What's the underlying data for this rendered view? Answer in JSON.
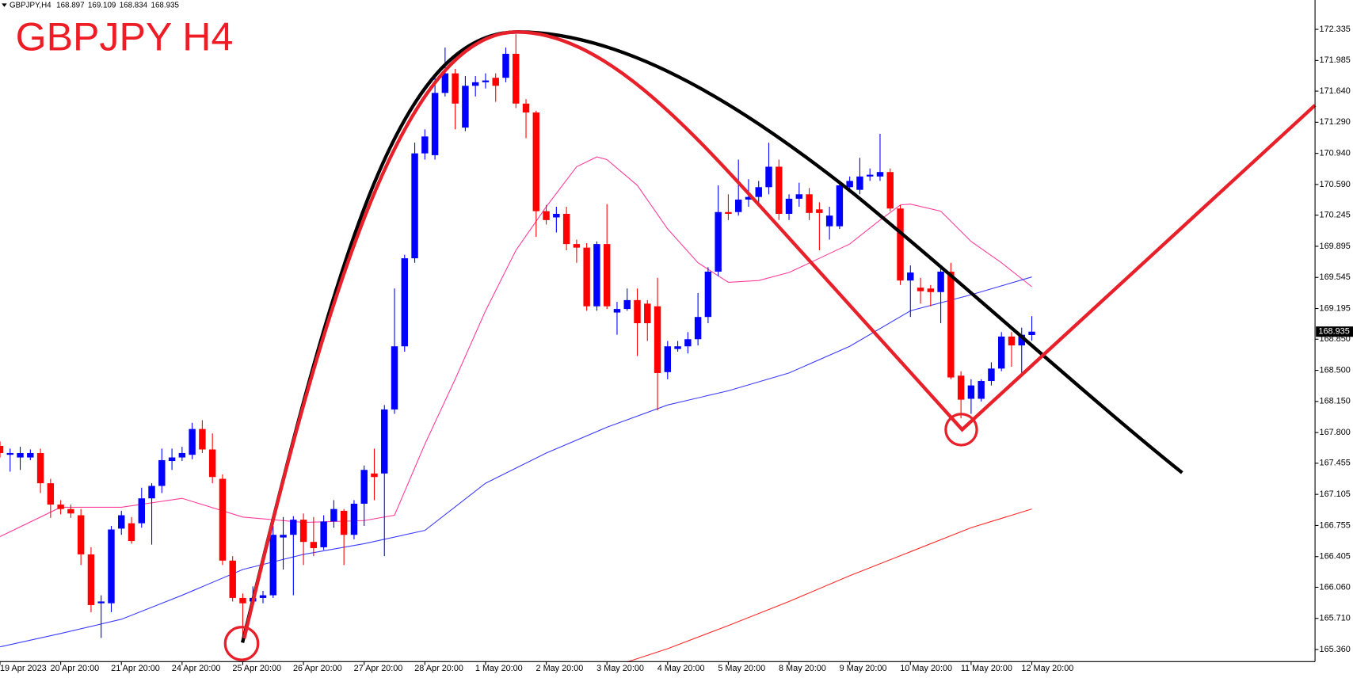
{
  "chart_data": {
    "type": "candlestick",
    "symbol": "GBPJPY,H4",
    "title": "GBPJPY H4",
    "up_color": "#0000ff",
    "down_color": "#ff0000",
    "xlim": [
      0,
      130
    ],
    "ylim": [
      165.224,
      172.665
    ],
    "yticks": [
      172.335,
      171.985,
      {
        "value": 171.64,
        "label": "171.640"
      },
      {
        "value": 171.29,
        "label": "171.290"
      },
      {
        "value": 170.94,
        "label": "170.940"
      },
      {
        "value": 170.59,
        "label": "170.590"
      },
      170.245,
      169.895,
      169.545,
      169.195,
      {
        "value": 168.85,
        "label": "168.850"
      },
      {
        "value": 168.5,
        "label": "168.500"
      },
      {
        "value": 168.15,
        "label": "168.150"
      },
      {
        "value": 167.8,
        "label": "167.800"
      },
      167.455,
      167.105,
      166.755,
      166.405,
      {
        "value": 166.06,
        "label": "166.060"
      },
      {
        "value": 165.71,
        "label": "165.710"
      },
      {
        "value": 165.36,
        "label": "165.360"
      }
    ],
    "xticks": [
      {
        "value": 0,
        "label": "19 Apr 2023"
      },
      {
        "value": 6,
        "label": "20 Apr 20:00"
      },
      {
        "value": 12,
        "label": "21 Apr 20:00"
      },
      {
        "value": 18,
        "label": "24 Apr 20:00"
      },
      {
        "value": 24,
        "label": "25 Apr 20:00"
      },
      {
        "value": 30,
        "label": "26 Apr 20:00"
      },
      {
        "value": 36,
        "label": "27 Apr 20:00"
      },
      {
        "value": 42,
        "label": "28 Apr 20:00"
      },
      {
        "value": 48,
        "label": "1 May 20:00"
      },
      {
        "value": 54,
        "label": "2 May 20:00"
      },
      {
        "value": 60,
        "label": "3 May 20:00"
      },
      {
        "value": 66,
        "label": "4 May 20:00"
      },
      {
        "value": 72,
        "label": "5 May 20:00"
      },
      {
        "value": 78,
        "label": "8 May 20:00"
      },
      {
        "value": 84,
        "label": "9 May 20:00"
      },
      {
        "value": 90,
        "label": "10 May 20:00"
      },
      {
        "value": 96,
        "label": "11 May 20:00"
      },
      {
        "value": 102,
        "label": "12 May 20:00"
      }
    ],
    "candles": [
      {
        "open": 167.65,
        "high": 167.7,
        "low": 167.52,
        "close": 167.57
      },
      {
        "open": 167.55,
        "high": 167.62,
        "low": 167.36,
        "close": 167.57
      },
      {
        "open": 167.52,
        "high": 167.64,
        "low": 167.38,
        "close": 167.57
      },
      {
        "open": 167.52,
        "high": 167.61,
        "low": 167.49,
        "close": 167.57
      },
      {
        "open": 167.57,
        "high": 167.62,
        "low": 167.12,
        "close": 167.23
      },
      {
        "open": 167.23,
        "high": 167.28,
        "low": 166.84,
        "close": 166.99
      },
      {
        "open": 166.99,
        "high": 167.04,
        "low": 166.88,
        "close": 166.94
      },
      {
        "open": 166.94,
        "high": 166.99,
        "low": 166.84,
        "close": 166.89
      },
      {
        "open": 166.87,
        "high": 166.94,
        "low": 166.31,
        "close": 166.43
      },
      {
        "open": 166.43,
        "high": 166.51,
        "low": 165.78,
        "close": 165.86
      },
      {
        "open": 165.88,
        "high": 165.97,
        "low": 165.49,
        "close": 165.9
      },
      {
        "open": 165.88,
        "high": 166.75,
        "low": 165.78,
        "close": 166.71
      },
      {
        "open": 166.72,
        "high": 166.92,
        "low": 166.65,
        "close": 166.87
      },
      {
        "open": 166.78,
        "high": 166.85,
        "low": 166.55,
        "close": 166.58
      },
      {
        "open": 166.78,
        "high": 167.18,
        "low": 166.73,
        "close": 167.06
      },
      {
        "open": 167.06,
        "high": 167.23,
        "low": 166.54,
        "close": 167.2
      },
      {
        "open": 167.2,
        "high": 167.62,
        "low": 167.12,
        "close": 167.49
      },
      {
        "open": 167.48,
        "high": 167.62,
        "low": 167.38,
        "close": 167.52
      },
      {
        "open": 167.52,
        "high": 167.64,
        "low": 167.48,
        "close": 167.57
      },
      {
        "open": 167.55,
        "high": 167.91,
        "low": 167.5,
        "close": 167.84
      },
      {
        "open": 167.84,
        "high": 167.94,
        "low": 167.57,
        "close": 167.61
      },
      {
        "open": 167.61,
        "high": 167.79,
        "low": 167.23,
        "close": 167.3
      },
      {
        "open": 167.28,
        "high": 167.33,
        "low": 166.31,
        "close": 166.36
      },
      {
        "open": 166.36,
        "high": 166.41,
        "low": 165.9,
        "close": 165.94
      },
      {
        "open": 165.94,
        "high": 165.99,
        "low": 165.49,
        "close": 165.88
      },
      {
        "open": 165.9,
        "high": 166.07,
        "low": 165.83,
        "close": 165.94
      },
      {
        "open": 165.94,
        "high": 166.02,
        "low": 165.88,
        "close": 165.97
      },
      {
        "open": 165.97,
        "high": 166.75,
        "low": 165.94,
        "close": 166.65
      },
      {
        "open": 166.62,
        "high": 166.85,
        "low": 166.26,
        "close": 166.65
      },
      {
        "open": 166.65,
        "high": 166.86,
        "low": 165.97,
        "close": 166.82
      },
      {
        "open": 166.82,
        "high": 166.89,
        "low": 166.31,
        "close": 166.57
      },
      {
        "open": 166.57,
        "high": 166.85,
        "low": 166.41,
        "close": 166.5
      },
      {
        "open": 166.51,
        "high": 166.87,
        "low": 166.48,
        "close": 166.8
      },
      {
        "open": 166.8,
        "high": 167.04,
        "low": 166.73,
        "close": 166.94
      },
      {
        "open": 166.92,
        "high": 166.94,
        "low": 166.31,
        "close": 166.65
      },
      {
        "open": 166.65,
        "high": 167.04,
        "low": 166.6,
        "close": 167.0
      },
      {
        "open": 167.0,
        "high": 167.43,
        "low": 166.75,
        "close": 167.38
      },
      {
        "open": 167.34,
        "high": 167.62,
        "low": 167.04,
        "close": 167.3
      },
      {
        "open": 167.34,
        "high": 168.11,
        "low": 166.41,
        "close": 168.06
      },
      {
        "open": 168.06,
        "high": 169.42,
        "low": 168.01,
        "close": 168.77
      },
      {
        "open": 168.77,
        "high": 169.8,
        "low": 168.71,
        "close": 169.76
      },
      {
        "open": 169.76,
        "high": 171.06,
        "low": 169.71,
        "close": 170.94
      },
      {
        "open": 170.94,
        "high": 171.21,
        "low": 170.87,
        "close": 171.13
      },
      {
        "open": 170.92,
        "high": 171.79,
        "low": 170.87,
        "close": 171.62
      },
      {
        "open": 171.62,
        "high": 172.13,
        "low": 171.58,
        "close": 171.84
      },
      {
        "open": 171.84,
        "high": 171.89,
        "low": 171.21,
        "close": 171.5
      },
      {
        "open": 171.23,
        "high": 171.81,
        "low": 171.19,
        "close": 171.7
      },
      {
        "open": 171.7,
        "high": 171.81,
        "low": 171.58,
        "close": 171.74
      },
      {
        "open": 171.74,
        "high": 171.84,
        "low": 171.67,
        "close": 171.76
      },
      {
        "open": 171.79,
        "high": 171.84,
        "low": 171.52,
        "close": 171.7
      },
      {
        "open": 171.79,
        "high": 172.13,
        "low": 171.74,
        "close": 172.06
      },
      {
        "open": 172.06,
        "high": 172.28,
        "low": 171.45,
        "close": 171.5
      },
      {
        "open": 171.5,
        "high": 171.55,
        "low": 171.11,
        "close": 171.4
      },
      {
        "open": 171.4,
        "high": 171.42,
        "low": 170.0,
        "close": 170.29
      },
      {
        "open": 170.29,
        "high": 170.36,
        "low": 170.14,
        "close": 170.19
      },
      {
        "open": 170.22,
        "high": 170.34,
        "low": 170.05,
        "close": 170.26
      },
      {
        "open": 170.26,
        "high": 170.34,
        "low": 169.85,
        "close": 169.92
      },
      {
        "open": 169.92,
        "high": 169.97,
        "low": 169.71,
        "close": 169.88
      },
      {
        "open": 169.88,
        "high": 169.93,
        "low": 169.17,
        "close": 169.22
      },
      {
        "open": 169.22,
        "high": 169.95,
        "low": 169.17,
        "close": 169.92
      },
      {
        "open": 169.92,
        "high": 170.37,
        "low": 169.19,
        "close": 169.22
      },
      {
        "open": 169.15,
        "high": 169.27,
        "low": 168.9,
        "close": 169.19
      },
      {
        "open": 169.19,
        "high": 169.42,
        "low": 169.17,
        "close": 169.29
      },
      {
        "open": 169.29,
        "high": 169.42,
        "low": 168.66,
        "close": 169.03
      },
      {
        "open": 169.25,
        "high": 169.29,
        "low": 168.83,
        "close": 169.03
      },
      {
        "open": 169.22,
        "high": 169.54,
        "low": 168.05,
        "close": 168.47
      },
      {
        "open": 168.48,
        "high": 168.83,
        "low": 168.4,
        "close": 168.77
      },
      {
        "open": 168.74,
        "high": 168.83,
        "low": 168.71,
        "close": 168.77
      },
      {
        "open": 168.77,
        "high": 168.93,
        "low": 168.69,
        "close": 168.85
      },
      {
        "open": 168.85,
        "high": 169.37,
        "low": 168.78,
        "close": 169.1
      },
      {
        "open": 169.1,
        "high": 169.66,
        "low": 169.03,
        "close": 169.61
      },
      {
        "open": 169.61,
        "high": 170.58,
        "low": 169.56,
        "close": 170.28
      },
      {
        "open": 170.28,
        "high": 170.48,
        "low": 170.19,
        "close": 170.26
      },
      {
        "open": 170.28,
        "high": 170.87,
        "low": 170.24,
        "close": 170.42
      },
      {
        "open": 170.42,
        "high": 170.65,
        "low": 170.34,
        "close": 170.45
      },
      {
        "open": 170.45,
        "high": 170.63,
        "low": 170.34,
        "close": 170.56
      },
      {
        "open": 170.56,
        "high": 171.06,
        "low": 170.48,
        "close": 170.79
      },
      {
        "open": 170.79,
        "high": 170.87,
        "low": 170.19,
        "close": 170.26
      },
      {
        "open": 170.26,
        "high": 170.48,
        "low": 170.19,
        "close": 170.43
      },
      {
        "open": 170.43,
        "high": 170.61,
        "low": 170.34,
        "close": 170.48
      },
      {
        "open": 170.48,
        "high": 170.55,
        "low": 170.19,
        "close": 170.27
      },
      {
        "open": 170.31,
        "high": 170.39,
        "low": 169.85,
        "close": 170.27
      },
      {
        "open": 170.12,
        "high": 170.34,
        "low": 169.97,
        "close": 170.24
      },
      {
        "open": 170.12,
        "high": 170.63,
        "low": 170.09,
        "close": 170.58
      },
      {
        "open": 170.56,
        "high": 170.68,
        "low": 170.53,
        "close": 170.63
      },
      {
        "open": 170.53,
        "high": 170.89,
        "low": 170.48,
        "close": 170.68
      },
      {
        "open": 170.68,
        "high": 170.77,
        "low": 170.63,
        "close": 170.7
      },
      {
        "open": 170.68,
        "high": 171.16,
        "low": 170.63,
        "close": 170.73
      },
      {
        "open": 170.73,
        "high": 170.77,
        "low": 170.29,
        "close": 170.32
      },
      {
        "open": 170.32,
        "high": 170.36,
        "low": 169.46,
        "close": 169.51
      },
      {
        "open": 169.51,
        "high": 169.68,
        "low": 169.1,
        "close": 169.6
      },
      {
        "open": 169.43,
        "high": 169.54,
        "low": 169.25,
        "close": 169.39
      },
      {
        "open": 169.42,
        "high": 169.46,
        "low": 169.22,
        "close": 169.38
      },
      {
        "open": 169.38,
        "high": 169.66,
        "low": 169.03,
        "close": 169.61
      },
      {
        "open": 169.61,
        "high": 169.71,
        "low": 168.4,
        "close": 168.42
      },
      {
        "open": 168.44,
        "high": 168.49,
        "low": 167.96,
        "close": 168.17
      },
      {
        "open": 168.18,
        "high": 168.4,
        "low": 168.01,
        "close": 168.33
      },
      {
        "open": 168.18,
        "high": 168.4,
        "low": 168.15,
        "close": 168.38
      },
      {
        "open": 168.38,
        "high": 168.59,
        "low": 168.33,
        "close": 168.52
      },
      {
        "open": 168.52,
        "high": 168.93,
        "low": 168.49,
        "close": 168.88
      },
      {
        "open": 168.88,
        "high": 168.93,
        "low": 168.54,
        "close": 168.78
      },
      {
        "open": 168.78,
        "high": 168.98,
        "low": 168.47,
        "close": 168.9
      },
      {
        "open": 168.897,
        "high": 169.109,
        "low": 168.834,
        "close": 168.935
      }
    ],
    "series": [
      {
        "color": "#ff3c9b",
        "x": [
          0,
          6,
          12,
          18,
          24,
          30,
          36,
          39,
          42,
          45,
          48,
          51,
          54,
          57,
          59,
          60,
          63,
          66,
          69,
          72,
          75,
          78,
          81,
          84,
          87,
          89,
          90,
          93,
          96,
          99,
          102
        ],
        "values": [
          166.63,
          166.96,
          166.96,
          167.06,
          166.85,
          166.79,
          166.81,
          166.87,
          167.67,
          168.4,
          169.17,
          169.85,
          170.34,
          170.79,
          170.9,
          170.87,
          170.58,
          170.09,
          169.71,
          169.49,
          169.51,
          169.6,
          169.76,
          169.92,
          170.19,
          170.36,
          170.37,
          170.29,
          169.95,
          169.71,
          169.44
        ]
      },
      {
        "color": "#3c3cff",
        "x": [
          0,
          6,
          12,
          18,
          24,
          30,
          36,
          42,
          48,
          54,
          60,
          66,
          72,
          78,
          84,
          90,
          96,
          102
        ],
        "values": [
          165.39,
          165.54,
          165.7,
          165.97,
          166.26,
          166.43,
          166.55,
          166.7,
          167.23,
          167.57,
          167.86,
          168.11,
          168.27,
          168.47,
          168.77,
          169.17,
          169.35,
          169.55
        ]
      },
      {
        "color": "#ff2a2a",
        "x": [
          62,
          66,
          72,
          78,
          84,
          90,
          96,
          102
        ],
        "values": [
          165.22,
          165.37,
          165.63,
          165.9,
          166.19,
          166.46,
          166.73,
          166.94
        ]
      }
    ]
  }
}
